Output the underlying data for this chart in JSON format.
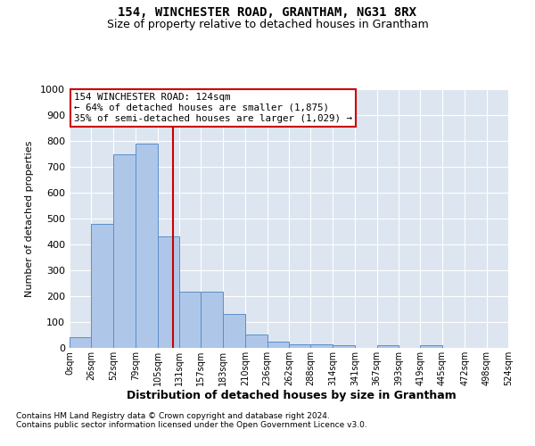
{
  "title": "154, WINCHESTER ROAD, GRANTHAM, NG31 8RX",
  "subtitle": "Size of property relative to detached houses in Grantham",
  "xlabel": "Distribution of detached houses by size in Grantham",
  "ylabel": "Number of detached properties",
  "footnote1": "Contains HM Land Registry data © Crown copyright and database right 2024.",
  "footnote2": "Contains public sector information licensed under the Open Government Licence v3.0.",
  "annotation_line1": "154 WINCHESTER ROAD: 124sqm",
  "annotation_line2": "← 64% of detached houses are smaller (1,875)",
  "annotation_line3": "35% of semi-detached houses are larger (1,029) →",
  "bar_edges": [
    0,
    26,
    52,
    79,
    105,
    131,
    157,
    183,
    210,
    236,
    262,
    288,
    314,
    341,
    367,
    393,
    419,
    445,
    472,
    498,
    524
  ],
  "bar_heights": [
    40,
    480,
    750,
    790,
    430,
    218,
    218,
    130,
    52,
    25,
    15,
    15,
    10,
    0,
    10,
    0,
    10,
    0,
    0,
    0
  ],
  "bar_color": "#aec6e8",
  "bar_edge_color": "#5b8fc9",
  "property_size": 124,
  "vline_color": "#cc0000",
  "ylim": [
    0,
    1000
  ],
  "yticks": [
    0,
    100,
    200,
    300,
    400,
    500,
    600,
    700,
    800,
    900,
    1000
  ],
  "bg_color": "#dde5f0",
  "annotation_box_color": "#cc0000",
  "title_fontsize": 10,
  "subtitle_fontsize": 9
}
